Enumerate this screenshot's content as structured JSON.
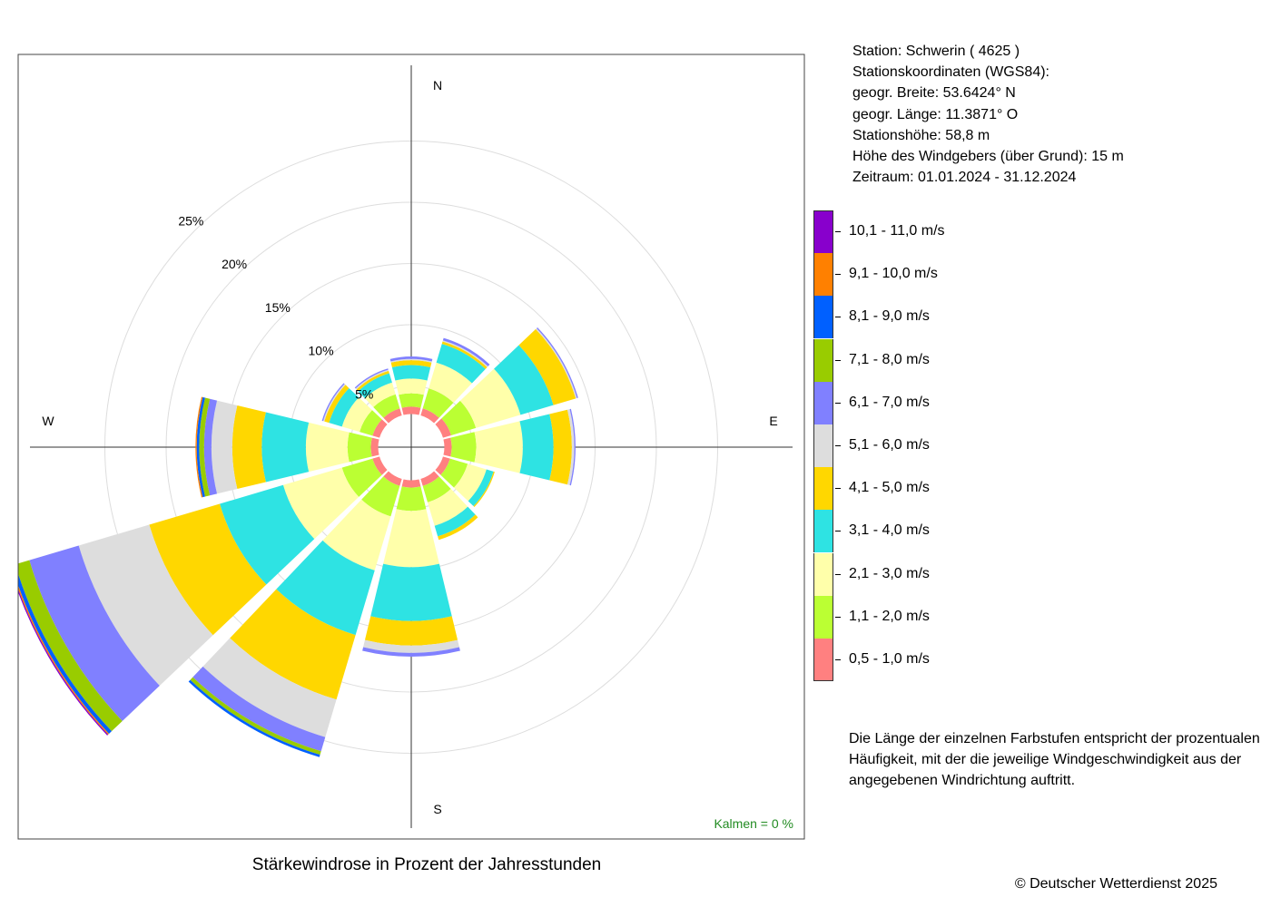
{
  "info": {
    "station": "Station:  Schwerin  ( 4625 )",
    "coords_title": "Stationskoordinaten (WGS84):",
    "latitude": "geogr. Breite: 53.6424° N",
    "longitude": "geogr. Länge: 11.3871° O",
    "station_height": "Stationshöhe: 58,8 m",
    "sensor_height": "Höhe des Windgebers (über Grund): 15 m",
    "period": "Zeitraum: 01.01.2024 - 31.12.2024"
  },
  "legend": [
    {
      "label": "10,1 - 11,0 m/s",
      "color": "#8800CC"
    },
    {
      "label": "9,1 - 10,0 m/s",
      "color": "#FF8000"
    },
    {
      "label": "8,1 - 9,0 m/s",
      "color": "#0060FF"
    },
    {
      "label": "7,1 - 8,0 m/s",
      "color": "#99CC00"
    },
    {
      "label": "6,1 - 7,0 m/s",
      "color": "#8080FF"
    },
    {
      "label": "5,1 - 6,0 m/s",
      "color": "#DDDDDD"
    },
    {
      "label": "4,1 - 5,0 m/s",
      "color": "#FFD700"
    },
    {
      "label": "3,1 - 4,0 m/s",
      "color": "#2EE3E3"
    },
    {
      "label": "2,1 - 3,0 m/s",
      "color": "#FFFFAA"
    },
    {
      "label": "1,1 - 2,0 m/s",
      "color": "#BBFF33"
    },
    {
      "label": "0,5 - 1,0 m/s",
      "color": "#FF8080"
    }
  ],
  "note": "Die Länge der einzelnen Farbstufen entspricht der prozentualen Häufigkeit, mit der die jeweilige Windgeschwindigkeit aus der angegebenen Windrichtung auftritt.",
  "footer_title": "Stärkewindrose in Prozent der Jahresstunden",
  "copyright": "© Deutscher Wetterdienst  2025",
  "chart_data": {
    "type": "wind-rose",
    "title": "Stärkewindrose in Prozent der Jahresstunden",
    "calm_label": "Kalmen  =  0 %",
    "calm_color": "#228B22",
    "compass": {
      "N": "N",
      "E": "E",
      "S": "S",
      "W": "W"
    },
    "ring_labels": [
      "5%",
      "10%",
      "15%",
      "20%",
      "25%"
    ],
    "rings": [
      5,
      10,
      15,
      20,
      25
    ],
    "speed_classes": [
      "0,5 - 1,0 m/s",
      "1,1 - 2,0 m/s",
      "2,1 - 3,0 m/s",
      "3,1 - 4,0 m/s",
      "4,1 - 5,0 m/s",
      "5,1 - 6,0 m/s",
      "6,1 - 7,0 m/s",
      "7,1 - 8,0 m/s",
      "8,1 - 9,0 m/s",
      "9,1 - 10,0 m/s",
      "10,1 - 11,0 m/s"
    ],
    "colors": [
      "#FF8080",
      "#BBFF33",
      "#FFFFAA",
      "#2EE3E3",
      "#FFD700",
      "#DDDDDD",
      "#8080FF",
      "#99CC00",
      "#0060FF",
      "#FF8000",
      "#8800CC"
    ],
    "inner_radius_pct": 2.7,
    "directions": [
      {
        "deg": 0,
        "values": [
          0.6,
          1.1,
          1.2,
          1.1,
          0.4,
          0.1,
          0.2,
          0,
          0,
          0,
          0
        ]
      },
      {
        "deg": 30,
        "values": [
          0.6,
          1.7,
          2.2,
          1.6,
          0.2,
          0.1,
          0.2,
          0,
          0,
          0,
          0
        ]
      },
      {
        "deg": 60,
        "values": [
          0.7,
          2.1,
          3.8,
          2.8,
          1.9,
          0.1,
          0.1,
          0,
          0,
          0,
          0
        ]
      },
      {
        "deg": 90,
        "values": [
          0.6,
          2.0,
          3.8,
          2.5,
          1.5,
          0.2,
          0.1,
          0,
          0,
          0,
          0
        ]
      },
      {
        "deg": 120,
        "values": [
          0.6,
          1.5,
          1.6,
          0.6,
          0.1,
          0,
          0,
          0,
          0,
          0,
          0
        ]
      },
      {
        "deg": 150,
        "values": [
          0.6,
          1.4,
          2.0,
          0.9,
          0.3,
          0,
          0,
          0,
          0,
          0,
          0
        ]
      },
      {
        "deg": 180,
        "values": [
          0.6,
          1.9,
          4.6,
          4.4,
          2.0,
          0.6,
          0.3,
          0,
          0,
          0,
          0
        ]
      },
      {
        "deg": 210,
        "values": [
          0.6,
          2.6,
          4.6,
          5.5,
          5.5,
          3.2,
          1.2,
          0.3,
          0.2,
          0,
          0
        ]
      },
      {
        "deg": 240,
        "values": [
          0.6,
          2.6,
          5.0,
          5.4,
          6.0,
          6.0,
          4.2,
          1.2,
          0.3,
          0.1,
          0.1
        ]
      },
      {
        "deg": 270,
        "values": [
          0.6,
          1.9,
          3.4,
          3.6,
          2.4,
          1.7,
          0.6,
          0.4,
          0.2,
          0.1,
          0
        ]
      },
      {
        "deg": 300,
        "values": [
          0.6,
          1.1,
          1.5,
          1.1,
          0.4,
          0.1,
          0.1,
          0,
          0,
          0,
          0
        ]
      },
      {
        "deg": 330,
        "values": [
          0.6,
          1.2,
          1.0,
          0.8,
          0.2,
          0.1,
          0.1,
          0,
          0,
          0,
          0
        ]
      }
    ]
  }
}
